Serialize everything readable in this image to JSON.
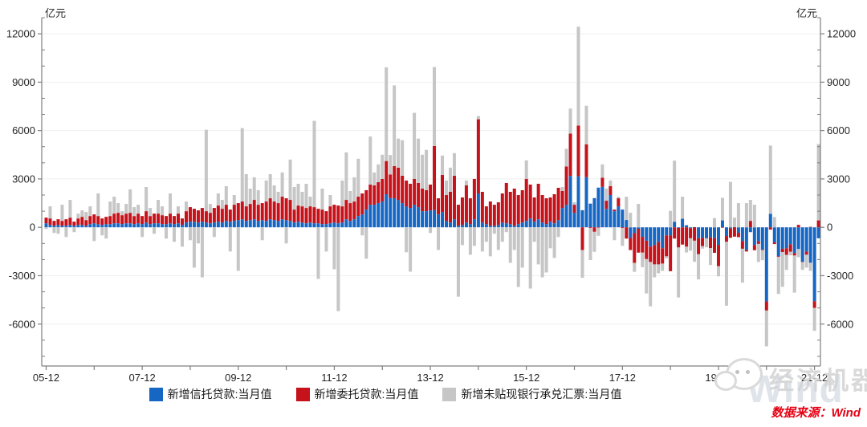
{
  "chart": {
    "unit_label_left": "亿元",
    "unit_label_right": "亿元",
    "source_note": "数据来源：Wind",
    "watermark_brand": "经济机器",
    "watermark_wind": "Wind",
    "colors": {
      "trust": "#1667c4",
      "entrusted": "#c5121b",
      "ba": "#c6c6c6",
      "grid": "#efefef",
      "axis": "#7f7f7f",
      "tick_label": "#262626",
      "source_red": "#e60012"
    }
  },
  "chart_data": {
    "type": "bar",
    "stacked": true,
    "title": "",
    "xlabel": "",
    "ylabel": "亿元",
    "ylim": [
      -8600,
      13000
    ],
    "grid": "horizontal",
    "legend_position": "bottom",
    "y_ticks": [
      12000,
      9000,
      6000,
      3000,
      0,
      -3000,
      -6000
    ],
    "y_minor_step": 1000,
    "x_tick_labels": [
      "05-12",
      "07-12",
      "09-12",
      "11-12",
      "13-12",
      "15-12",
      "17-12",
      "19-12",
      "21-12"
    ],
    "x_tick_indices": [
      0,
      24,
      48,
      72,
      96,
      120,
      144,
      168,
      192
    ],
    "x_minor_every": 12,
    "categories": [
      "2005-12",
      "2006-01",
      "2006-02",
      "2006-03",
      "2006-04",
      "2006-05",
      "2006-06",
      "2006-07",
      "2006-08",
      "2006-09",
      "2006-10",
      "2006-11",
      "2006-12",
      "2007-01",
      "2007-02",
      "2007-03",
      "2007-04",
      "2007-05",
      "2007-06",
      "2007-07",
      "2007-08",
      "2007-09",
      "2007-10",
      "2007-11",
      "2007-12",
      "2008-01",
      "2008-02",
      "2008-03",
      "2008-04",
      "2008-05",
      "2008-06",
      "2008-07",
      "2008-08",
      "2008-09",
      "2008-10",
      "2008-11",
      "2008-12",
      "2009-01",
      "2009-02",
      "2009-03",
      "2009-04",
      "2009-05",
      "2009-06",
      "2009-07",
      "2009-08",
      "2009-09",
      "2009-10",
      "2009-11",
      "2009-12",
      "2010-01",
      "2010-02",
      "2010-03",
      "2010-04",
      "2010-05",
      "2010-06",
      "2010-07",
      "2010-08",
      "2010-09",
      "2010-10",
      "2010-11",
      "2010-12",
      "2011-01",
      "2011-02",
      "2011-03",
      "2011-04",
      "2011-05",
      "2011-06",
      "2011-07",
      "2011-08",
      "2011-09",
      "2011-10",
      "2011-11",
      "2011-12",
      "2012-01",
      "2012-02",
      "2012-03",
      "2012-04",
      "2012-05",
      "2012-06",
      "2012-07",
      "2012-08",
      "2012-09",
      "2012-10",
      "2012-11",
      "2012-12",
      "2013-01",
      "2013-02",
      "2013-03",
      "2013-04",
      "2013-05",
      "2013-06",
      "2013-07",
      "2013-08",
      "2013-09",
      "2013-10",
      "2013-11",
      "2013-12",
      "2014-01",
      "2014-02",
      "2014-03",
      "2014-04",
      "2014-05",
      "2014-06",
      "2014-07",
      "2014-08",
      "2014-09",
      "2014-10",
      "2014-11",
      "2014-12",
      "2015-01",
      "2015-02",
      "2015-03",
      "2015-04",
      "2015-05",
      "2015-06",
      "2015-07",
      "2015-08",
      "2015-09",
      "2015-10",
      "2015-11",
      "2015-12",
      "2016-01",
      "2016-02",
      "2016-03",
      "2016-04",
      "2016-05",
      "2016-06",
      "2016-07",
      "2016-08",
      "2016-09",
      "2016-10",
      "2016-11",
      "2016-12",
      "2017-01",
      "2017-02",
      "2017-03",
      "2017-04",
      "2017-05",
      "2017-06",
      "2017-07",
      "2017-08",
      "2017-09",
      "2017-10",
      "2017-11",
      "2017-12",
      "2018-01",
      "2018-02",
      "2018-03",
      "2018-04",
      "2018-05",
      "2018-06",
      "2018-07",
      "2018-08",
      "2018-09",
      "2018-10",
      "2018-11",
      "2018-12",
      "2019-01",
      "2019-02",
      "2019-03",
      "2019-04",
      "2019-05",
      "2019-06",
      "2019-07",
      "2019-08",
      "2019-09",
      "2019-10",
      "2019-11",
      "2019-12",
      "2020-01",
      "2020-02",
      "2020-03",
      "2020-04",
      "2020-05",
      "2020-06",
      "2020-07",
      "2020-08",
      "2020-09",
      "2020-10",
      "2020-11",
      "2020-12",
      "2021-01",
      "2021-02",
      "2021-03",
      "2021-04",
      "2021-05",
      "2021-06",
      "2021-07",
      "2021-08",
      "2021-09",
      "2021-10",
      "2021-11",
      "2021-12",
      "2022-01"
    ],
    "series": [
      {
        "name": "新增信托贷款:当月值",
        "color": "#1667c4",
        "values": [
          250,
          150,
          100,
          150,
          100,
          100,
          150,
          100,
          150,
          150,
          100,
          200,
          250,
          200,
          150,
          200,
          200,
          250,
          250,
          200,
          250,
          250,
          200,
          250,
          200,
          300,
          200,
          250,
          250,
          200,
          200,
          250,
          200,
          250,
          150,
          300,
          350,
          350,
          300,
          350,
          300,
          250,
          300,
          350,
          300,
          400,
          350,
          400,
          450,
          500,
          400,
          450,
          500,
          400,
          450,
          400,
          500,
          450,
          400,
          500,
          450,
          400,
          300,
          350,
          300,
          250,
          300,
          250,
          250,
          200,
          200,
          250,
          300,
          250,
          300,
          500,
          400,
          500,
          700,
          800,
          1100,
          1400,
          1400,
          1500,
          1600,
          2050,
          1820,
          1800,
          1700,
          1500,
          1300,
          1200,
          1400,
          1250,
          1000,
          1000,
          1050,
          1070,
          800,
          950,
          400,
          300,
          500,
          100,
          150,
          300,
          200,
          500,
          2100,
          300,
          200,
          100,
          100,
          150,
          300,
          250,
          200,
          100,
          200,
          300,
          400,
          550,
          350,
          500,
          300,
          200,
          350,
          250,
          450,
          1200,
          1390,
          3190,
          900,
          3175,
          1060,
          3110,
          1470,
          1810,
          2460,
          2510,
          1140,
          2000,
          1000,
          1300,
          1100,
          455,
          -660,
          -360,
          -90,
          -590,
          -830,
          -1200,
          -1100,
          -900,
          -1300,
          -500,
          -510,
          345,
          -40,
          530,
          130,
          -50,
          15,
          -680,
          -650,
          -670,
          -620,
          -670,
          -1090,
          430,
          -540,
          -60,
          20,
          -340,
          -850,
          -1400,
          -300,
          -1100,
          -870,
          -1380,
          -4600,
          840,
          -940,
          -1790,
          -1330,
          -1300,
          -1050,
          -1600,
          -1350,
          -2130,
          -1500,
          -2200,
          -4580,
          -680
        ]
      },
      {
        "name": "新增委托贷款:当月值",
        "color": "#c5121b",
        "values": [
          350,
          400,
          300,
          350,
          300,
          400,
          450,
          250,
          400,
          500,
          350,
          500,
          550,
          500,
          400,
          450,
          500,
          600,
          650,
          550,
          600,
          650,
          500,
          600,
          500,
          700,
          500,
          600,
          600,
          550,
          500,
          600,
          500,
          600,
          400,
          700,
          900,
          800,
          750,
          850,
          700,
          650,
          900,
          1000,
          850,
          1000,
          750,
          1000,
          1050,
          1100,
          900,
          1000,
          1200,
          1000,
          1050,
          1200,
          1300,
          1150,
          1100,
          1400,
          1350,
          1300,
          800,
          1000,
          1000,
          950,
          1000,
          1000,
          900,
          900,
          800,
          1050,
          1100,
          1100,
          1000,
          1200,
          1100,
          1100,
          1200,
          1300,
          1200,
          1250,
          1200,
          1300,
          1400,
          2060,
          1460,
          2000,
          2000,
          1700,
          1600,
          1500,
          1600,
          1500,
          1400,
          1300,
          1600,
          3970,
          1000,
          2300,
          1600,
          1900,
          2700,
          1300,
          1700,
          2300,
          1600,
          2500,
          4600,
          1900,
          1100,
          1500,
          1300,
          1400,
          1800,
          2500,
          2000,
          2300,
          1800,
          2000,
          2600,
          2100,
          1500,
          2200,
          1700,
          1600,
          1500,
          1800,
          2000,
          1050,
          2380,
          2620,
          500,
          3135,
          -1410,
          2040,
          -50,
          -280,
          -30,
          570,
          510,
          550,
          100,
          500,
          -50,
          -700,
          -750,
          -1850,
          -1480,
          -980,
          -1140,
          -950,
          -1200,
          -1400,
          -950,
          -1300,
          -2210,
          -700,
          -1210,
          -1070,
          -1200,
          -630,
          -830,
          -990,
          -510,
          -20,
          -670,
          -910,
          -1320,
          -30,
          -360,
          -590,
          -580,
          -270,
          -480,
          -100,
          400,
          -320,
          -160,
          -30,
          -560,
          -140,
          -100,
          -40,
          -210,
          -410,
          -470,
          -150,
          150,
          -20,
          -200,
          30,
          -420,
          430
        ]
      },
      {
        "name": "新增未贴现银行承兑汇票:当月值",
        "color": "#c6c6c6",
        "values": [
          -100,
          750,
          -350,
          -400,
          1000,
          -600,
          1100,
          -300,
          300,
          400,
          500,
          600,
          -850,
          1400,
          -500,
          -700,
          900,
          1050,
          600,
          250,
          600,
          1450,
          550,
          550,
          -600,
          1500,
          500,
          -400,
          850,
          550,
          -700,
          1250,
          -900,
          450,
          -1200,
          600,
          -800,
          -2500,
          -1000,
          -3100,
          5050,
          550,
          -600,
          750,
          550,
          1150,
          -1500,
          600,
          -2700,
          4550,
          2000,
          950,
          1400,
          900,
          -800,
          1300,
          1500,
          1000,
          700,
          1500,
          -1000,
          2500,
          1400,
          1350,
          900,
          1500,
          600,
          5350,
          -3200,
          1300,
          -1500,
          700,
          -2600,
          -5200,
          1600,
          2950,
          750,
          1500,
          2350,
          -500,
          -1950,
          2980,
          800,
          1100,
          1500,
          5810,
          1200,
          5000,
          1800,
          2200,
          -1550,
          -2750,
          4100,
          2750,
          2100,
          2500,
          -350,
          4900,
          -1400,
          1200,
          900,
          1500,
          1400,
          -4300,
          -1100,
          300,
          -1700,
          -1150,
          200,
          -1500,
          -900,
          -1800,
          -400,
          -1400,
          -900,
          -300,
          -2200,
          -1400,
          -3700,
          -2500,
          1150,
          -3800,
          -900,
          -2300,
          -3100,
          -2800,
          -1300,
          -1900,
          -600,
          250,
          1100,
          1550,
          150,
          6130,
          -1720,
          2390,
          -1980,
          -1240,
          -500,
          820,
          750,
          350,
          -800,
          100,
          -1100,
          1440,
          900,
          -550,
          1450,
          -900,
          -2130,
          -2750,
          -800,
          -550,
          -450,
          -130,
          1020,
          3790,
          -3100,
          1370,
          -360,
          -770,
          -1310,
          -1560,
          -160,
          -550,
          -1050,
          570,
          -630,
          1400,
          -3960,
          2820,
          580,
          1500,
          -2100,
          1500,
          1300,
          1400,
          -1120,
          -630,
          -2220,
          4230,
          640,
          -2300,
          -2150,
          -930,
          -220,
          -2300,
          -500,
          -490,
          -800,
          -500,
          -1420,
          4730
        ]
      }
    ]
  }
}
